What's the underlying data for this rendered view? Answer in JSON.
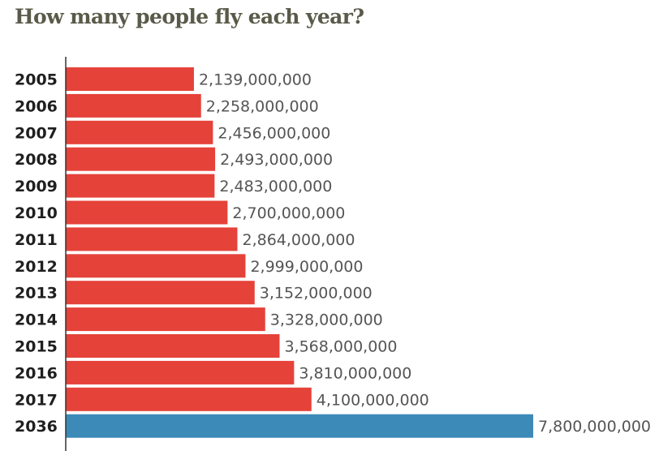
{
  "chart_data": {
    "type": "bar",
    "orientation": "horizontal",
    "title": "How many people fly each year?",
    "categories": [
      "2005",
      "2006",
      "2007",
      "2008",
      "2009",
      "2010",
      "2011",
      "2012",
      "2013",
      "2014",
      "2015",
      "2016",
      "2017",
      "2036"
    ],
    "values": [
      2139000000,
      2258000000,
      2456000000,
      2493000000,
      2483000000,
      2700000000,
      2864000000,
      2999000000,
      3152000000,
      3328000000,
      3568000000,
      3810000000,
      4100000000,
      7800000000
    ],
    "value_labels": [
      "2,139,000,000",
      "2,258,000,000",
      "2,456,000,000",
      "2,493,000,000",
      "2,483,000,000",
      "2,700,000,000",
      "2,864,000,000",
      "2,999,000,000",
      "3,152,000,000",
      "3,328,000,000",
      "3,568,000,000",
      "3,810,000,000",
      "4,100,000,000",
      "7,800,000,000"
    ],
    "xlim": [
      0,
      8200000000
    ],
    "grid": false,
    "colors": {
      "historical": "#e5423a",
      "forecast": "#3c8ab8",
      "axis": "#333333",
      "title": "#5a5a4a"
    },
    "highlight_category": "2036"
  }
}
